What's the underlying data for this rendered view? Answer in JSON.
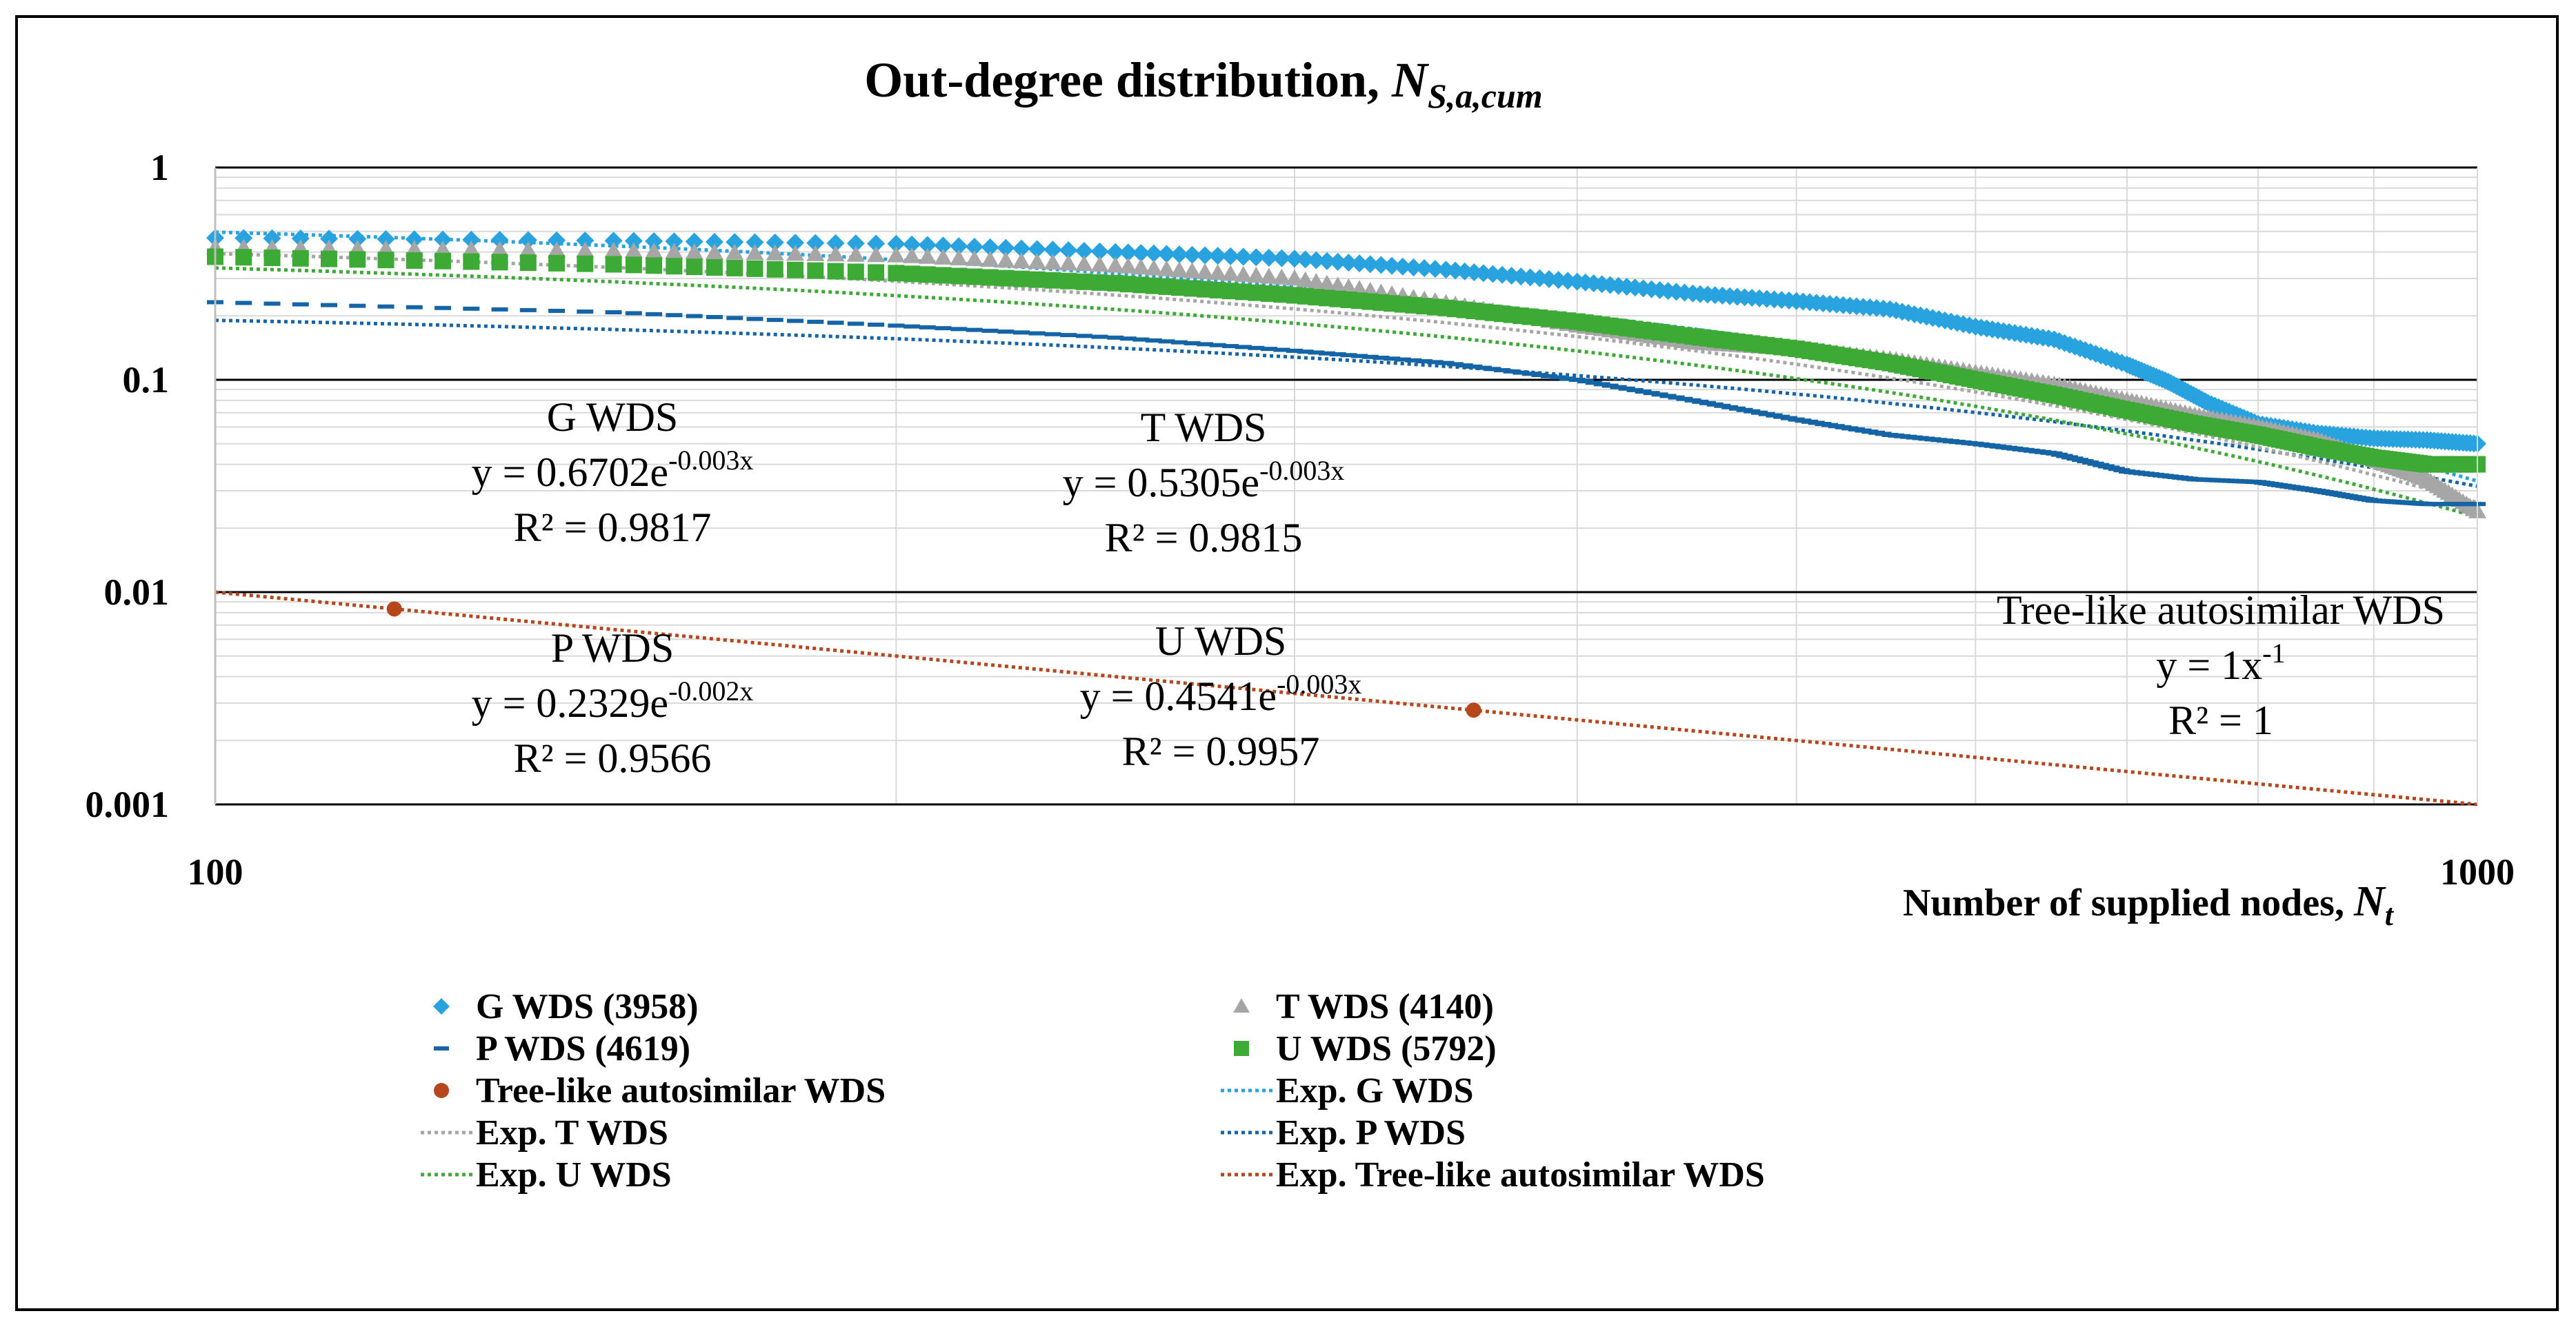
{
  "chart_data": {
    "type": "scatter",
    "title_main": "Out-degree distribution, ",
    "title_var": "N",
    "title_sub": "S,a,cum",
    "xlabel_main": "Number of supplied nodes, ",
    "xlabel_var": "N",
    "xlabel_sub": "t",
    "xscale": "log",
    "yscale": "log",
    "xlim": [
      100,
      1000
    ],
    "ylim": [
      0.001,
      1
    ],
    "xticks": [
      100,
      1000
    ],
    "xtick_labels": [
      "100",
      "1000"
    ],
    "yticks": [
      1,
      0.1,
      0.01,
      0.001
    ],
    "ytick_labels": [
      "1",
      "0.1",
      "0.01",
      "0.001"
    ],
    "grid": true,
    "legend_position": "bottom",
    "series": [
      {
        "name": "G WDS (3958)",
        "marker": "diamond",
        "color": "#29a3e0",
        "points": [
          [
            100,
            0.466
          ],
          [
            150,
            0.452
          ],
          [
            200,
            0.437
          ],
          [
            250,
            0.4
          ],
          [
            300,
            0.372
          ],
          [
            350,
            0.33
          ],
          [
            400,
            0.29
          ],
          [
            450,
            0.255
          ],
          [
            500,
            0.235
          ],
          [
            550,
            0.215
          ],
          [
            600,
            0.178
          ],
          [
            650,
            0.155
          ],
          [
            700,
            0.118
          ],
          [
            730,
            0.098
          ],
          [
            760,
            0.078
          ],
          [
            800,
            0.062
          ],
          [
            850,
            0.056
          ],
          [
            900,
            0.053
          ],
          [
            950,
            0.052
          ],
          [
            1000,
            0.05
          ]
        ]
      },
      {
        "name": "T WDS (4140",
        "marker": "triangle",
        "color": "#a6a6a6",
        "points": [
          [
            100,
            0.42
          ],
          [
            150,
            0.405
          ],
          [
            200,
            0.385
          ],
          [
            250,
            0.345
          ],
          [
            300,
            0.3
          ],
          [
            350,
            0.23
          ],
          [
            400,
            0.18
          ],
          [
            450,
            0.15
          ],
          [
            500,
            0.14
          ],
          [
            550,
            0.125
          ],
          [
            600,
            0.108
          ],
          [
            650,
            0.095
          ],
          [
            700,
            0.08
          ],
          [
            750,
            0.068
          ],
          [
            800,
            0.06
          ],
          [
            850,
            0.052
          ],
          [
            900,
            0.042
          ],
          [
            950,
            0.034
          ],
          [
            1000,
            0.024
          ]
        ]
      },
      {
        "name": "P WDS (4619)",
        "marker": "dash",
        "color": "#1565a6",
        "points": [
          [
            100,
            0.232
          ],
          [
            150,
            0.208
          ],
          [
            200,
            0.18
          ],
          [
            250,
            0.158
          ],
          [
            300,
            0.137
          ],
          [
            350,
            0.12
          ],
          [
            400,
            0.1
          ],
          [
            450,
            0.08
          ],
          [
            500,
            0.065
          ],
          [
            550,
            0.055
          ],
          [
            600,
            0.05
          ],
          [
            650,
            0.045
          ],
          [
            700,
            0.037
          ],
          [
            750,
            0.034
          ],
          [
            800,
            0.033
          ],
          [
            850,
            0.03
          ],
          [
            900,
            0.027
          ],
          [
            950,
            0.026
          ],
          [
            1000,
            0.026
          ]
        ]
      },
      {
        "name": "U WDS (5792)",
        "marker": "square",
        "color": "#3daa35",
        "points": [
          [
            100,
            0.38
          ],
          [
            150,
            0.35
          ],
          [
            200,
            0.318
          ],
          [
            250,
            0.285
          ],
          [
            300,
            0.25
          ],
          [
            350,
            0.218
          ],
          [
            400,
            0.188
          ],
          [
            450,
            0.16
          ],
          [
            500,
            0.14
          ],
          [
            550,
            0.12
          ],
          [
            600,
            0.1
          ],
          [
            650,
            0.085
          ],
          [
            700,
            0.072
          ],
          [
            750,
            0.062
          ],
          [
            800,
            0.055
          ],
          [
            850,
            0.048
          ],
          [
            900,
            0.043
          ],
          [
            950,
            0.04
          ],
          [
            1000,
            0.04
          ]
        ]
      },
      {
        "name": "Tree-like autosimilar WDS",
        "marker": "circle",
        "color": "#b6461c",
        "points": [
          [
            120,
            0.00833
          ],
          [
            360,
            0.00278
          ]
        ]
      }
    ],
    "trendlines": [
      {
        "name": "Exp. G WDS",
        "color": "#29a3e0",
        "a": 0.6702,
        "b": -0.003
      },
      {
        "name": "Exp. P WDS",
        "color": "#1565a6",
        "a": 0.2329,
        "b": -0.002
      },
      {
        "name": "Exp. T WDS",
        "color": "#a6a6a6",
        "a": 0.5305,
        "b": -0.003
      },
      {
        "name": "Exp. U WDS",
        "color": "#3daa35",
        "a": 0.4541,
        "b": -0.003
      },
      {
        "name": "Exp. Tree-like autosimilar WDS",
        "color": "#b6461c",
        "power": true,
        "a": 1,
        "b": -1
      }
    ],
    "annotations": [
      {
        "id": "g",
        "title": "G WDS",
        "eq_pre": "y = 0.6702e",
        "eq_exp": "-0.003x",
        "r2": "R² = 0.9817"
      },
      {
        "id": "t",
        "title": "T WDS",
        "eq_pre": "y = 0.5305e",
        "eq_exp": "-0.003x",
        "r2": "R² = 0.9815"
      },
      {
        "id": "p",
        "title": "P WDS",
        "eq_pre": "y = 0.2329e",
        "eq_exp": "-0.002x",
        "r2": "R² = 0.9566"
      },
      {
        "id": "u",
        "title": "U WDS",
        "eq_pre": "y = 0.4541e",
        "eq_exp": "-0.003x",
        "r2": "R² = 0.9957"
      },
      {
        "id": "tree",
        "title": "Tree-like autosimilar WDS",
        "eq_pre": "y = 1x",
        "eq_exp": "-1",
        "r2": "R² = 1"
      }
    ],
    "legend": [
      {
        "label": "G WDS (3958)",
        "kind": "diamond",
        "color": "#29a3e0"
      },
      {
        "label": "T WDS (4140)",
        "kind": "triangle",
        "color": "#a6a6a6"
      },
      {
        "label": "P WDS (4619)",
        "kind": "dash",
        "color": "#1565a6"
      },
      {
        "label": "U WDS (5792)",
        "kind": "square",
        "color": "#3daa35"
      },
      {
        "label": "Tree-like autosimilar WDS",
        "kind": "circle",
        "color": "#b6461c"
      },
      {
        "label": "Exp. G WDS",
        "kind": "dotted",
        "color": "#29a3e0"
      },
      {
        "label": "Exp. T WDS",
        "kind": "dotted",
        "color": "#a6a6a6"
      },
      {
        "label": "Exp. P WDS",
        "kind": "dotted",
        "color": "#1565a6"
      },
      {
        "label": "Exp. U WDS",
        "kind": "dotted",
        "color": "#3daa35"
      },
      {
        "label": "Exp. Tree-like autosimilar WDS",
        "kind": "dotted",
        "color": "#b6461c"
      }
    ]
  }
}
